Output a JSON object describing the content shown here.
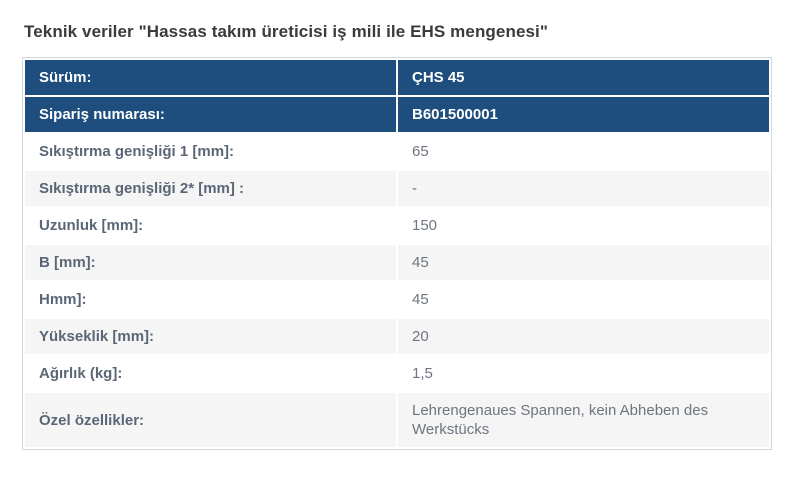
{
  "title": "Teknik veriler \"Hassas takım üreticisi iş mili ile EHS mengenesi\"",
  "colors": {
    "header_row_bg": "#1e4e7e",
    "header_row_text": "#ffffff",
    "alt_row_bg": "#f5f5f6",
    "label_text": "#5b6776",
    "value_text": "#6e7580",
    "table_border": "#d3d7db",
    "title_text": "#3b3b3d"
  },
  "table": {
    "rows": [
      {
        "label": "Sürüm:",
        "value": "ÇHS 45"
      },
      {
        "label": "Sipariş numarası:",
        "value": "B601500001"
      },
      {
        "label": "Sıkıştırma genişliği 1 [mm]:",
        "value": "65"
      },
      {
        "label": "Sıkıştırma genişliği 2* [mm] :",
        "value": "-"
      },
      {
        "label": "Uzunluk [mm]:",
        "value": "150"
      },
      {
        "label": "B [mm]:",
        "value": "45"
      },
      {
        "label": "Hmm]:",
        "value": "45"
      },
      {
        "label": "Yükseklik [mm]:",
        "value": "20"
      },
      {
        "label": "Ağırlık (kg]:",
        "value": "1,5"
      },
      {
        "label": "Özel özellikler:",
        "value": "Lehrengenaues Spannen, kein Abheben des Werkstücks"
      }
    ]
  }
}
